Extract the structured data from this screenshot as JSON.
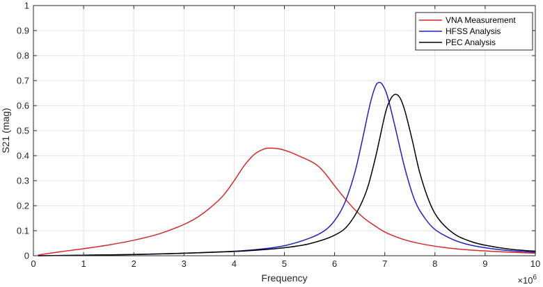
{
  "chart_data": {
    "type": "line",
    "title": "",
    "xlabel": "Frequency",
    "ylabel": "S21 (mag)",
    "x_exponent_label": "×10",
    "x_exponent_power": "6",
    "xlim": [
      0,
      10
    ],
    "ylim": [
      0,
      1
    ],
    "x_ticks": [
      0,
      1,
      2,
      3,
      4,
      5,
      6,
      7,
      8,
      9,
      10
    ],
    "x_tick_labels": [
      "0",
      "1",
      "2",
      "3",
      "4",
      "5",
      "6",
      "7",
      "8",
      "9",
      "10"
    ],
    "y_ticks": [
      0,
      0.1,
      0.2,
      0.3,
      0.4,
      0.5,
      0.6,
      0.7,
      0.8,
      0.9,
      1
    ],
    "y_tick_labels": [
      "0",
      "0.1",
      "0.2",
      "0.3",
      "0.4",
      "0.5",
      "0.6",
      "0.7",
      "0.8",
      "0.9",
      "1"
    ],
    "grid": true,
    "legend_position": "top-right",
    "series": [
      {
        "name": "VNA Measurement",
        "color": "#d62728",
        "x": [
          0.1,
          0.5,
          1.0,
          1.5,
          2.0,
          2.5,
          3.0,
          3.3,
          3.6,
          3.8,
          4.0,
          4.2,
          4.4,
          4.6,
          4.75,
          4.9,
          5.1,
          5.3,
          5.5,
          5.65,
          5.8,
          6.0,
          6.2,
          6.4,
          6.6,
          6.8,
          7.0,
          7.3,
          7.6,
          8.0,
          8.5,
          9.0,
          9.5,
          10.0
        ],
        "y": [
          0.003,
          0.015,
          0.028,
          0.043,
          0.062,
          0.087,
          0.125,
          0.158,
          0.205,
          0.245,
          0.3,
          0.36,
          0.405,
          0.427,
          0.43,
          0.427,
          0.415,
          0.398,
          0.38,
          0.362,
          0.332,
          0.28,
          0.23,
          0.185,
          0.148,
          0.12,
          0.095,
          0.07,
          0.053,
          0.038,
          0.026,
          0.019,
          0.014,
          0.01
        ]
      },
      {
        "name": "HFSS Analysis",
        "color": "#1f1fc8",
        "x": [
          0.1,
          1.0,
          2.0,
          3.0,
          4.0,
          4.5,
          5.0,
          5.5,
          5.8,
          6.0,
          6.2,
          6.4,
          6.55,
          6.7,
          6.8,
          6.87,
          6.95,
          7.05,
          7.2,
          7.4,
          7.6,
          7.8,
          8.0,
          8.3,
          8.6,
          9.0,
          9.5,
          10.0
        ],
        "y": [
          0.0,
          0.002,
          0.005,
          0.01,
          0.018,
          0.026,
          0.04,
          0.07,
          0.1,
          0.14,
          0.21,
          0.33,
          0.46,
          0.6,
          0.67,
          0.692,
          0.685,
          0.64,
          0.52,
          0.35,
          0.22,
          0.15,
          0.105,
          0.07,
          0.048,
          0.032,
          0.02,
          0.014
        ]
      },
      {
        "name": "PEC Analysis",
        "color": "#000000",
        "x": [
          0.1,
          1.0,
          2.0,
          3.0,
          4.0,
          4.5,
          5.0,
          5.5,
          6.0,
          6.3,
          6.6,
          6.8,
          7.0,
          7.1,
          7.2,
          7.3,
          7.4,
          7.55,
          7.7,
          7.9,
          8.1,
          8.4,
          8.7,
          9.0,
          9.5,
          10.0
        ],
        "y": [
          0.0,
          0.002,
          0.005,
          0.01,
          0.017,
          0.023,
          0.032,
          0.048,
          0.082,
          0.13,
          0.24,
          0.38,
          0.56,
          0.62,
          0.645,
          0.632,
          0.58,
          0.46,
          0.33,
          0.21,
          0.14,
          0.085,
          0.058,
          0.042,
          0.026,
          0.018
        ]
      }
    ]
  }
}
